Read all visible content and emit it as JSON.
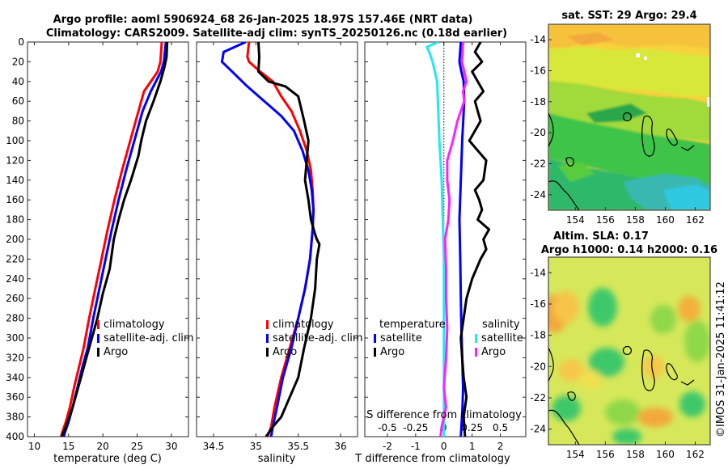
{
  "title_line1": "Argo profile: aoml 5906924_68 26-Jan-2025 18.97S 157.46E (NRT data)",
  "title_line2": "Climatology: CARS2009. Satellite-adj clim: synTS_20250126.nc (0.18d earlier)",
  "copyright": "©IMOS 31-Jan-2025 11:41:12",
  "colors": {
    "red": "#ff0000",
    "blue": "#0000ff",
    "black": "#000000",
    "cyan": "#22e8f0",
    "magenta": "#ff22ff"
  },
  "chart_data": [
    {
      "type": "line",
      "name": "temperature-profile",
      "xlabel": "temperature (deg C)",
      "ylabel": "",
      "xlim": [
        9,
        32.5
      ],
      "ylim": [
        0,
        400
      ],
      "xticks": [
        10,
        15,
        20,
        25,
        30
      ],
      "yticks": [
        0,
        20,
        40,
        60,
        80,
        100,
        120,
        140,
        160,
        180,
        200,
        220,
        240,
        260,
        280,
        300,
        320,
        340,
        360,
        380,
        400
      ],
      "legend": [
        "climatology",
        "satellite-adj. clim",
        "Argo"
      ],
      "series": [
        {
          "name": "climatology",
          "color": "#ff0000",
          "x": [
            28.6,
            28.4,
            28.0,
            26.0,
            25.2,
            24.0,
            22.8,
            21.7,
            20.7,
            19.8,
            18.9,
            18.0,
            17.2,
            16.5,
            15.8,
            15.2,
            14.6,
            14.1,
            13.9
          ],
          "y": [
            0,
            20,
            30,
            50,
            70,
            100,
            130,
            160,
            190,
            220,
            250,
            280,
            310,
            330,
            350,
            370,
            385,
            395,
            400
          ]
        },
        {
          "name": "satellite-adj. clim",
          "color": "#0000ff",
          "x": [
            29.2,
            28.9,
            28.5,
            27.0,
            25.8,
            24.6,
            23.4,
            22.3,
            21.3,
            20.4,
            19.5,
            18.6,
            17.8,
            17.0,
            16.3,
            15.6,
            15.0,
            14.5,
            14.3
          ],
          "y": [
            0,
            20,
            30,
            50,
            70,
            100,
            130,
            160,
            190,
            220,
            250,
            280,
            310,
            330,
            350,
            370,
            385,
            395,
            400
          ]
        },
        {
          "name": "Argo",
          "color": "#000000",
          "x": [
            29.4,
            29.3,
            29.0,
            28.4,
            27.4,
            26.3,
            25.6,
            25.2,
            24.1,
            23.1,
            22.3,
            21.6,
            21.4,
            21.0,
            20.0,
            19.2,
            18.4,
            17.6,
            16.8,
            16.2,
            15.6,
            15.1,
            14.6,
            14.0
          ],
          "y": [
            0,
            15,
            25,
            40,
            60,
            80,
            100,
            115,
            140,
            160,
            180,
            200,
            210,
            230,
            255,
            280,
            300,
            320,
            340,
            355,
            370,
            380,
            390,
            400
          ]
        }
      ]
    },
    {
      "type": "line",
      "name": "salinity-profile",
      "xlabel": "salinity",
      "ylabel": "",
      "xlim": [
        34.3,
        36.2
      ],
      "ylim": [
        0,
        400
      ],
      "xticks": [
        34.5,
        35,
        35.5,
        36
      ],
      "legend": [
        "climatology",
        "satellite-adj. clim",
        "Argo"
      ],
      "series": [
        {
          "name": "climatology",
          "color": "#ff0000",
          "x": [
            34.92,
            34.9,
            34.92,
            35.05,
            35.2,
            35.3,
            35.42,
            35.52,
            35.6,
            35.65,
            35.67,
            35.68,
            35.67,
            35.64,
            35.58,
            35.5,
            35.4,
            35.3,
            35.22,
            35.18,
            35.14
          ],
          "y": [
            0,
            15,
            20,
            30,
            40,
            55,
            70,
            90,
            110,
            130,
            150,
            170,
            190,
            220,
            250,
            280,
            310,
            340,
            370,
            390,
            400
          ]
        },
        {
          "name": "satellite-adj. clim",
          "color": "#0000ff",
          "x": [
            34.88,
            34.62,
            34.6,
            34.72,
            34.9,
            35.1,
            35.3,
            35.45,
            35.55,
            35.62,
            35.66,
            35.68,
            35.67,
            35.64,
            35.58,
            35.5,
            35.42,
            35.32,
            35.25,
            35.2,
            35.18
          ],
          "y": [
            0,
            10,
            20,
            30,
            45,
            60,
            75,
            90,
            110,
            130,
            150,
            170,
            190,
            220,
            250,
            280,
            310,
            340,
            370,
            390,
            400
          ]
        },
        {
          "name": "Argo",
          "color": "#000000",
          "x": [
            35.03,
            35.04,
            35.03,
            35.15,
            35.35,
            35.5,
            35.57,
            35.62,
            35.6,
            35.58,
            35.62,
            35.65,
            35.7,
            35.72,
            35.75,
            35.72,
            35.7,
            35.65,
            35.57,
            35.5,
            35.4,
            35.3,
            35.2,
            35.12
          ],
          "y": [
            0,
            15,
            30,
            40,
            45,
            55,
            80,
            100,
            120,
            140,
            160,
            180,
            195,
            200,
            205,
            220,
            250,
            280,
            310,
            340,
            360,
            380,
            390,
            400
          ]
        }
      ]
    },
    {
      "type": "line",
      "name": "difference-profile",
      "xlabel": "T difference from climatology",
      "xlabel_top": "S difference from climatology",
      "xlim": [
        -2.8,
        2.9
      ],
      "ylim": [
        0,
        400
      ],
      "xticks": [
        -2,
        -1,
        0,
        1,
        2
      ],
      "s_xlim": [
        -0.7,
        0.725
      ],
      "s_xticks": [
        -0.5,
        -0.25,
        0,
        0.25,
        0.5
      ],
      "s_ticklabels": [
        "-0.5",
        "-0.25",
        "0",
        "0.25",
        "0.5"
      ],
      "legend_temperature": {
        "title": "temperature",
        "entries": [
          "satellite",
          "Argo"
        ]
      },
      "legend_salinity": {
        "title": "salinity",
        "entries": [
          "satellite",
          "Argo"
        ]
      },
      "series": [
        {
          "name": "T satellite",
          "axis": "T",
          "color": "#0000ff",
          "x": [
            0.6,
            0.55,
            0.62,
            0.7,
            0.72,
            0.65,
            0.6,
            0.55,
            0.58,
            0.6,
            0.62,
            0.65,
            0.68,
            0.66,
            0.62,
            0.6
          ],
          "y": [
            0,
            20,
            30,
            40,
            60,
            100,
            140,
            180,
            220,
            260,
            290,
            320,
            350,
            370,
            390,
            400
          ]
        },
        {
          "name": "T Argo",
          "axis": "T",
          "color": "#000000",
          "x": [
            1.3,
            1.1,
            1.35,
            1.0,
            1.2,
            1.4,
            1.1,
            1.2,
            1.3,
            1.1,
            0.9,
            1.2,
            1.5,
            1.45,
            1.4,
            1.1,
            1.25,
            1.35,
            1.2,
            1.6,
            1.4,
            1.5,
            1.3,
            1.0,
            0.8,
            0.7,
            0.6,
            0.65,
            0.7,
            0.8,
            0.7,
            0.75
          ],
          "y": [
            0,
            10,
            20,
            30,
            40,
            50,
            60,
            70,
            80,
            90,
            100,
            110,
            120,
            130,
            140,
            150,
            160,
            170,
            180,
            190,
            200,
            210,
            220,
            240,
            260,
            280,
            300,
            320,
            340,
            360,
            380,
            400
          ]
        },
        {
          "name": "S satellite",
          "axis": "S",
          "color": "#22e8f0",
          "x": [
            -0.05,
            -0.15,
            -0.13,
            -0.1,
            -0.06,
            -0.05,
            -0.04,
            -0.02,
            -0.01,
            0,
            0,
            0,
            0,
            0
          ],
          "y": [
            0,
            5,
            10,
            20,
            40,
            70,
            100,
            140,
            180,
            220,
            260,
            300,
            350,
            400
          ]
        },
        {
          "name": "S Argo",
          "axis": "S",
          "color": "#ff22ff",
          "x": [
            0.17,
            0.16,
            0.2,
            0.17,
            0.18,
            0.12,
            0.08,
            0.03,
            0.03,
            0.05,
            0.04,
            0.01,
            0.02,
            0.02,
            0.03,
            0.02,
            0.0,
            0.02,
            0.0,
            -0.02,
            -0.03
          ],
          "y": [
            0,
            20,
            40,
            50,
            60,
            80,
            100,
            120,
            140,
            160,
            180,
            200,
            230,
            260,
            290,
            320,
            350,
            370,
            380,
            390,
            400
          ]
        }
      ]
    },
    {
      "type": "heatmap",
      "name": "sst-map",
      "title": "sat. SST: 29 Argo: 29.4",
      "xticks": [
        "154",
        "156",
        "158",
        "160",
        "162"
      ],
      "yticks": [
        "-14",
        "-16",
        "-18",
        "-20",
        "-22",
        "-24"
      ],
      "xlim": [
        152.2,
        163
      ],
      "ylim": [
        -25,
        -13
      ],
      "marker": {
        "lon": 157.46,
        "lat": -18.97
      }
    },
    {
      "type": "heatmap",
      "name": "sla-map",
      "title_line1": "Altim. SLA: 0.17",
      "title_line2": "Argo h1000: 0.14 h2000: 0.16",
      "xticks": [
        "154",
        "156",
        "158",
        "160",
        "162"
      ],
      "yticks": [
        "-14",
        "-16",
        "-18",
        "-20",
        "-22",
        "-24"
      ],
      "xlim": [
        152.2,
        163
      ],
      "ylim": [
        -25,
        -13
      ],
      "marker": {
        "lon": 157.46,
        "lat": -18.97
      }
    }
  ]
}
